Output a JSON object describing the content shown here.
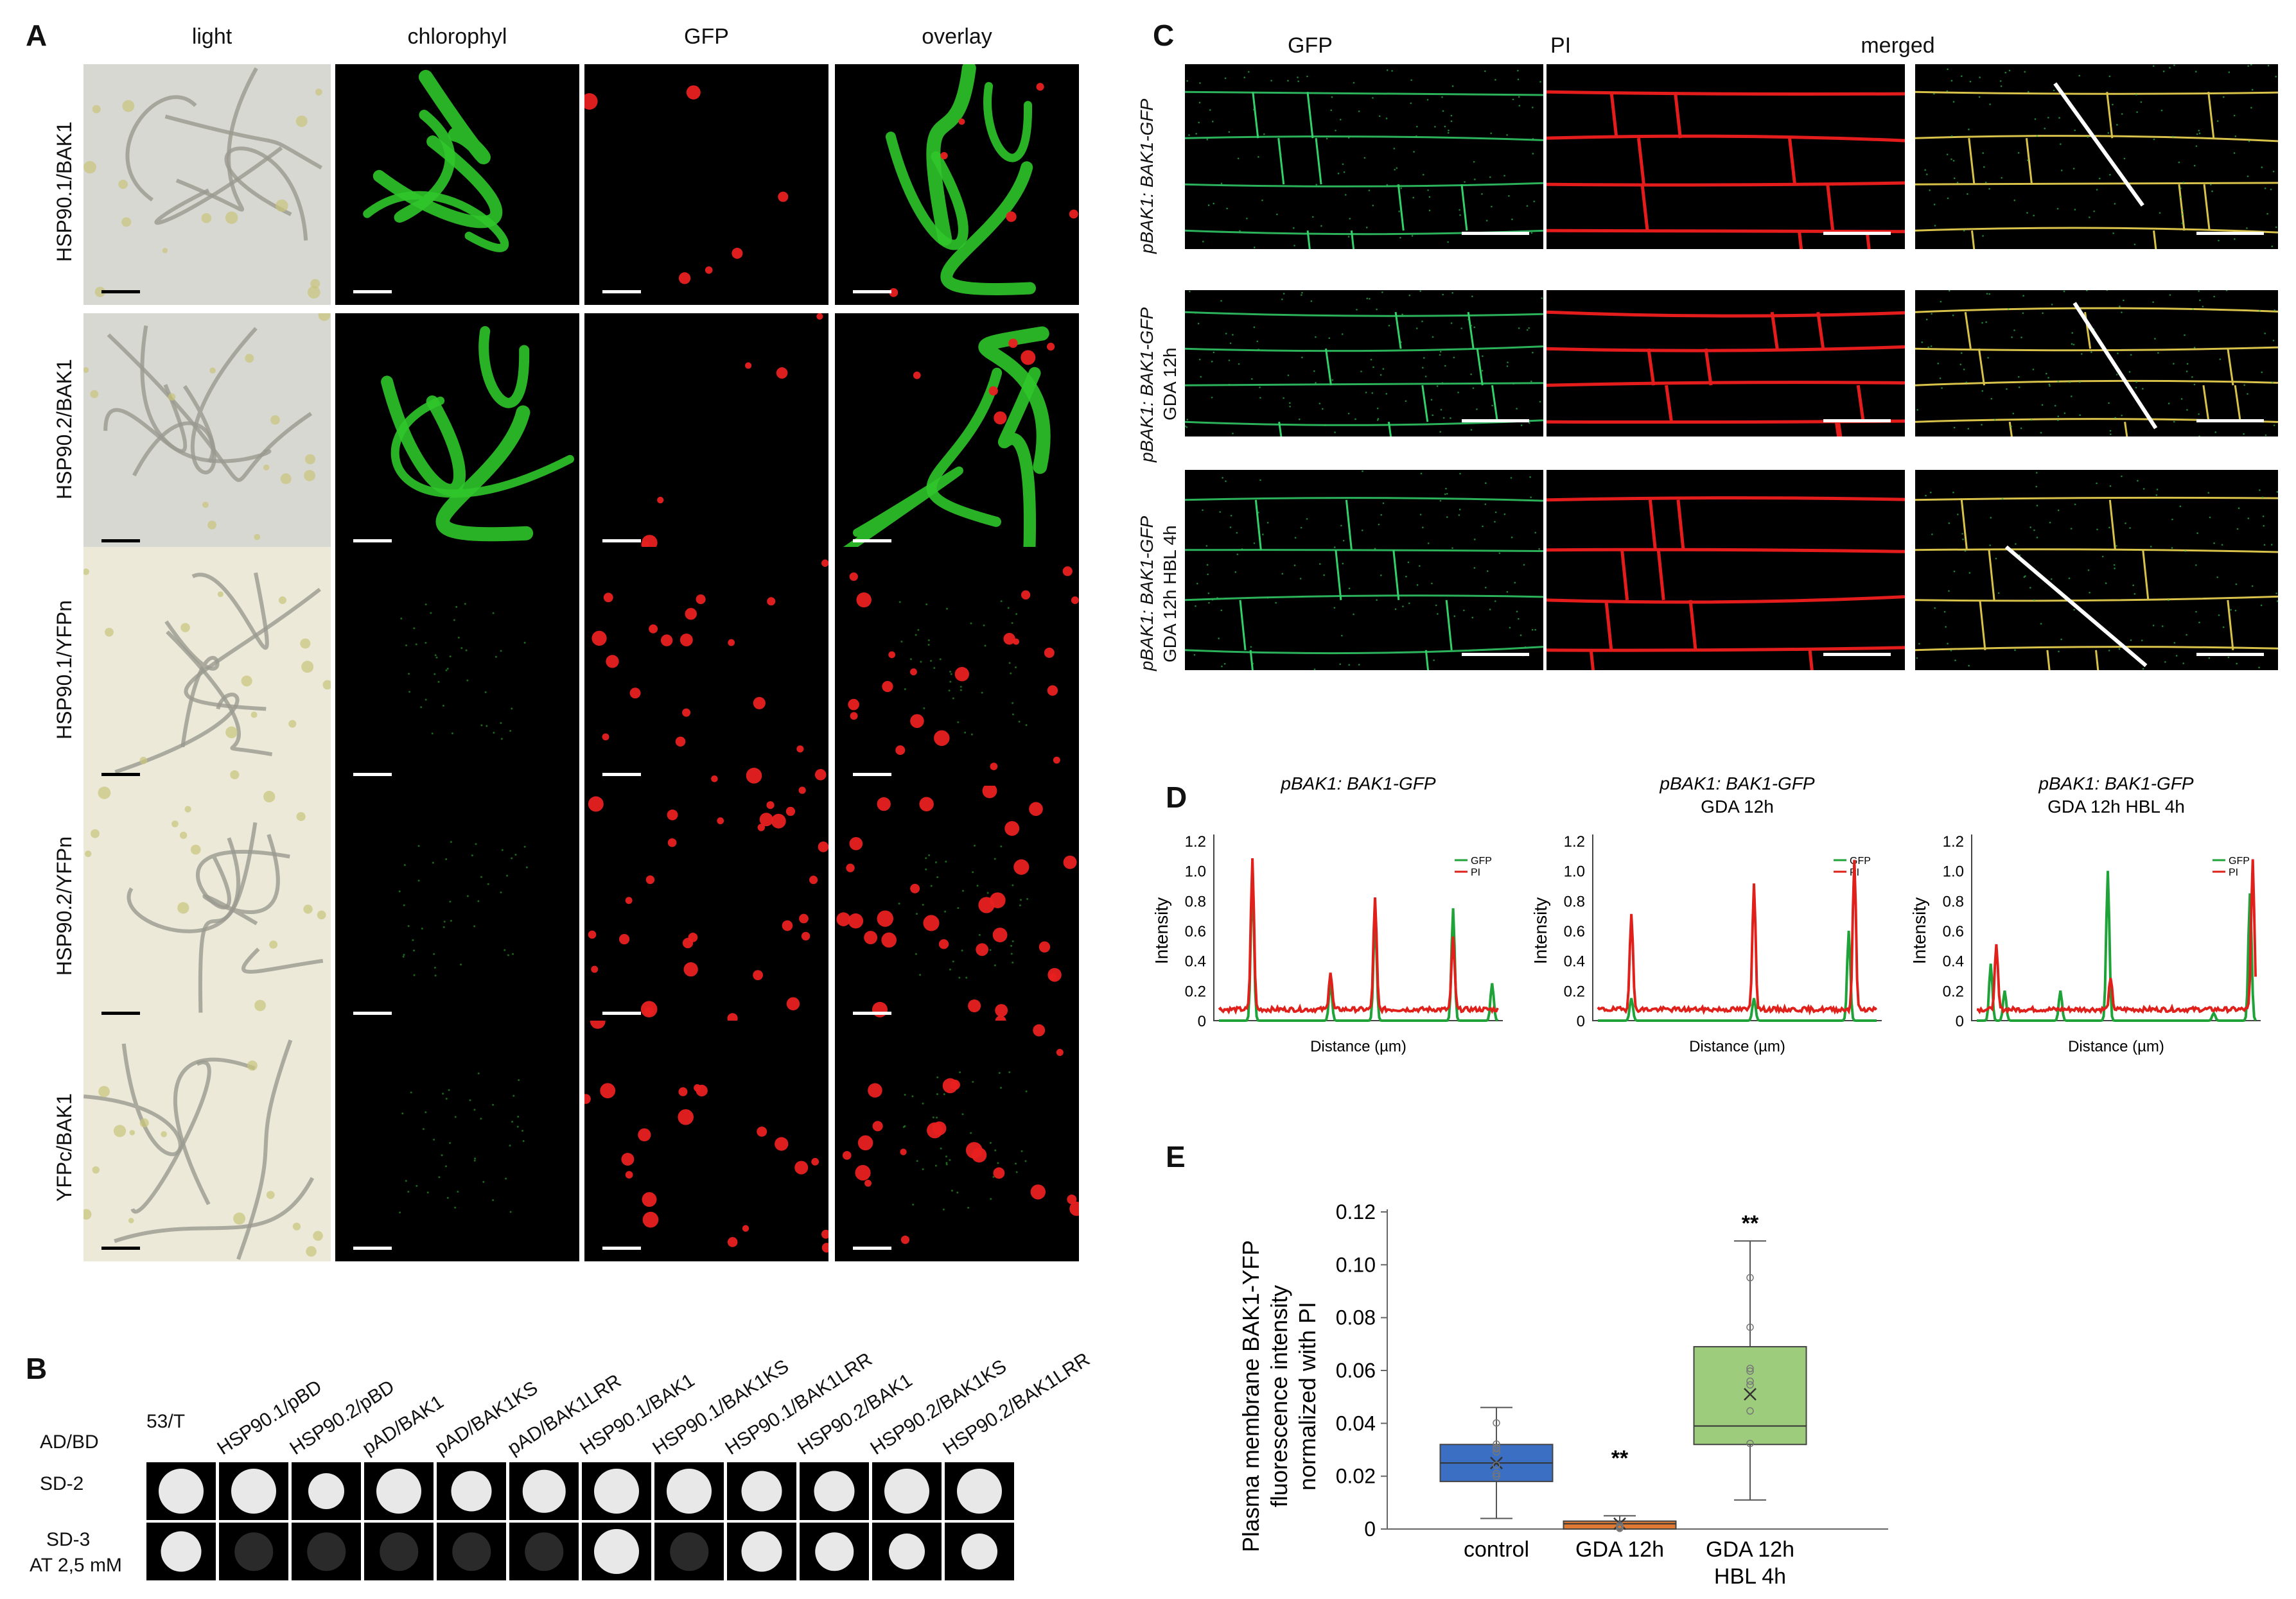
{
  "panelA": {
    "label": "A",
    "columns": [
      "light",
      "chlorophyl",
      "GFP",
      "overlay"
    ],
    "rows": [
      "HSP90.1/BAK1",
      "HSP90.2/BAK1",
      "HSP90.1/YFPn",
      "HSP90.2/YFPn",
      "YFPc/BAK1"
    ]
  },
  "panelB": {
    "label": "B",
    "row_header": "AD/BD",
    "rows": [
      "SD-2",
      "SD-3",
      "AT 2,5 mM"
    ],
    "columns": [
      "53/T",
      "HSP90.1/pBD",
      "HSP90.2/pBD",
      "pAD/BAK1",
      "pAD/BAK1KS",
      "pAD/BAK1LRR",
      "HSP90.1/BAK1",
      "HSP90.1/BAK1KS",
      "HSP90.1/BAK1LRR",
      "HSP90.2/BAK1",
      "HSP90.2/BAK1KS",
      "HSP90.2/BAK1LRR"
    ]
  },
  "panelC": {
    "label": "C",
    "columns": [
      "GFP",
      "PI",
      "merged"
    ],
    "rows": [
      "pBAK1: BAK1-GFP",
      "pBAK1: BAK1-GFP",
      "GDA 12h",
      "pBAK1: BAK1-GFP",
      "GDA 12h HBL 4h"
    ]
  },
  "panelD": {
    "label": "D",
    "ylabel": "Intensity",
    "xlabel": "Distance (µm)",
    "yticks": [
      "1.2",
      "1.0",
      "0.8",
      "0.6",
      "0.4",
      "0.2",
      "0"
    ],
    "legend": [
      "GFP",
      "PI"
    ],
    "plots": [
      {
        "title": "pBAK1: BAK1-GFP",
        "subtitle": ""
      },
      {
        "title": "pBAK1: BAK1-GFP",
        "subtitle": "GDA 12h"
      },
      {
        "title": "pBAK1: BAK1-GFP",
        "subtitle": "GDA 12h HBL 4h"
      }
    ]
  },
  "panelE": {
    "label": "E",
    "ylabel_lines": [
      "Plasma membrane BAK1-YFP",
      "fluorescence intensity",
      "normalized with PI"
    ],
    "yticks": [
      "0.12",
      "0.10",
      "0.08",
      "0.06",
      "0.04",
      "0.02",
      "0"
    ],
    "categories": [
      "control",
      "GDA 12h",
      "GDA 12h",
      "HBL 4h"
    ],
    "significance": [
      "**",
      "**"
    ]
  },
  "chart_data": [
    {
      "type": "line",
      "title": "pBAK1: BAK1-GFP",
      "xlabel": "Distance (µm)",
      "ylabel": "Intensity",
      "ylim": [
        0,
        1.2
      ],
      "legend": "top-right",
      "series": [
        {
          "name": "GFP",
          "color": "#1fa339",
          "peaks": [
            [
              0.12,
              0.95
            ],
            [
              0.4,
              0.25
            ],
            [
              0.56,
              0.7
            ],
            [
              0.84,
              0.75
            ],
            [
              0.98,
              0.25
            ]
          ]
        },
        {
          "name": "PI",
          "color": "#e0201b",
          "peaks": [
            [
              0.12,
              1.0
            ],
            [
              0.4,
              0.25
            ],
            [
              0.56,
              0.74
            ],
            [
              0.84,
              0.48
            ]
          ]
        }
      ]
    },
    {
      "type": "line",
      "title": "pBAK1: BAK1-GFP GDA 12h",
      "xlabel": "Distance (µm)",
      "ylabel": "Intensity",
      "ylim": [
        0,
        1.2
      ],
      "legend": "top-right",
      "series": [
        {
          "name": "GFP",
          "color": "#1fa339",
          "peaks": [
            [
              0.12,
              0.15
            ],
            [
              0.56,
              0.15
            ],
            [
              0.9,
              0.6
            ]
          ]
        },
        {
          "name": "PI",
          "color": "#e0201b",
          "peaks": [
            [
              0.12,
              0.65
            ],
            [
              0.56,
              0.85
            ],
            [
              0.92,
              1.0
            ]
          ]
        }
      ]
    },
    {
      "type": "line",
      "title": "pBAK1: BAK1-GFP GDA 12h HBL 4h",
      "xlabel": "Distance (µm)",
      "ylabel": "Intensity",
      "ylim": [
        0,
        1.2
      ],
      "legend": "top-right",
      "series": [
        {
          "name": "GFP",
          "color": "#1fa339",
          "peaks": [
            [
              0.05,
              0.38
            ],
            [
              0.1,
              0.2
            ],
            [
              0.3,
              0.2
            ],
            [
              0.47,
              1.0
            ],
            [
              0.85,
              0.05
            ],
            [
              0.98,
              0.85
            ]
          ]
        },
        {
          "name": "PI",
          "color": "#e0201b",
          "peaks": [
            [
              0.07,
              0.42
            ],
            [
              0.48,
              0.2
            ],
            [
              0.99,
              1.0
            ]
          ]
        }
      ]
    },
    {
      "type": "box",
      "ylabel": "Plasma membrane BAK1-YFP fluorescence intensity normalized with PI",
      "ylim": [
        0,
        0.12
      ],
      "categories": [
        "control",
        "GDA 12h",
        "GDA 12h HBL 4h"
      ],
      "series": [
        {
          "name": "control",
          "color": "#3a6fc4",
          "min": 0.004,
          "q1": 0.018,
          "median": 0.025,
          "q3": 0.032,
          "max": 0.046,
          "mean": 0.025
        },
        {
          "name": "GDA 12h",
          "color": "#e07a33",
          "min": 0.0,
          "q1": 0.0,
          "median": 0.002,
          "q3": 0.003,
          "max": 0.005,
          "mean": 0.002
        },
        {
          "name": "GDA 12h HBL 4h",
          "color": "#9ccc7c",
          "min": 0.011,
          "q1": 0.032,
          "median": 0.039,
          "q3": 0.069,
          "max": 0.109,
          "mean": 0.051
        }
      ]
    }
  ]
}
